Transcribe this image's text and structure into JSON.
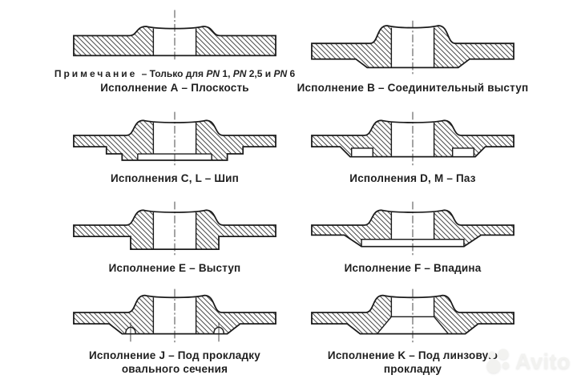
{
  "page": {
    "background": "#ffffff",
    "line_color": "#1b1b1b"
  },
  "note": {
    "label": "Примечание",
    "segments": [
      {
        "text": " – Только для ",
        "italic": false
      },
      {
        "text": "PN",
        "italic": true
      },
      {
        "text": " 1, ",
        "italic": false
      },
      {
        "text": "PN",
        "italic": true
      },
      {
        "text": " 2,5 и ",
        "italic": false
      },
      {
        "text": "PN",
        "italic": true
      },
      {
        "text": " 6",
        "italic": false
      }
    ]
  },
  "figures": [
    {
      "caption": "Исполнение А – Плоскость"
    },
    {
      "caption": "Исполнение B – Соединительный выступ"
    },
    {
      "caption": "Исполнения C, L – Шип"
    },
    {
      "caption": "Исполнения D, M – Паз"
    },
    {
      "caption": "Исполнение E – Выступ"
    },
    {
      "caption": "Исполнение F – Впадина"
    },
    {
      "caption": "Исполнение J – Под прокладку овального сечения"
    },
    {
      "caption": "Исполнение K – Под линзовую прокладку"
    }
  ],
  "watermark": {
    "text": "Avito",
    "color": "#f2f2f0"
  }
}
